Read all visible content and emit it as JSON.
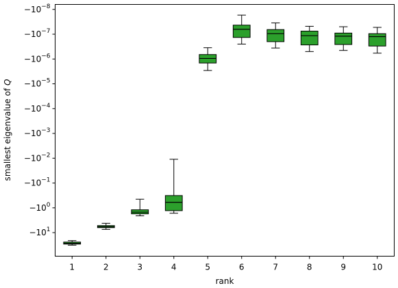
{
  "chart_data": {
    "type": "box",
    "xlabel": "rank",
    "ylabel": "smallest eigenvalue of Q",
    "ylabel_symbol": "Q",
    "yscale": "symlog (negative values, magnitude log10)",
    "y_exponent_range": [
      -8.2,
      1.95
    ],
    "box_color": "#2ca02c",
    "categories": [
      "1",
      "2",
      "3",
      "4",
      "5",
      "6",
      "7",
      "8",
      "9",
      "10"
    ],
    "y_ticks": [
      {
        "base": "−10",
        "exp": "−8",
        "value": -1e-08
      },
      {
        "base": "−10",
        "exp": "−7",
        "value": -1e-07
      },
      {
        "base": "−10",
        "exp": "−6",
        "value": -1e-06
      },
      {
        "base": "−10",
        "exp": "−5",
        "value": -1e-05
      },
      {
        "base": "−10",
        "exp": "−4",
        "value": -0.0001
      },
      {
        "base": "−10",
        "exp": "−3",
        "value": -0.001
      },
      {
        "base": "−10",
        "exp": "−2",
        "value": -0.01
      },
      {
        "base": "−10",
        "exp": "−1",
        "value": -0.1
      },
      {
        "base": "−10",
        "exp": "0",
        "value": -1
      },
      {
        "base": "−10",
        "exp": "1",
        "value": -10
      }
    ],
    "boxes": [
      {
        "rank": "1",
        "whisker_low": -32,
        "q1": -29,
        "median": -27,
        "q3": -24,
        "whisker_high": -21
      },
      {
        "rank": "2",
        "whisker_low": -7.4,
        "q1": -6.3,
        "median": -5.8,
        "q3": -5.2,
        "whisker_high": -4.2
      },
      {
        "rank": "3",
        "whisker_low": -2.1,
        "q1": -1.75,
        "median": -1.5,
        "q3": -1.2,
        "whisker_high": -0.45
      },
      {
        "rank": "4",
        "whisker_low": -1.65,
        "q1": -1.3,
        "median": -0.6,
        "q3": -0.32,
        "whisker_high": -0.011
      },
      {
        "rank": "5",
        "whisker_low": -2.9e-06,
        "q1": -1.45e-06,
        "median": -9.5e-07,
        "q3": -6.6e-07,
        "whisker_high": -3.5e-07
      },
      {
        "rank": "6",
        "whisker_low": -2.5e-07,
        "q1": -1.35e-07,
        "median": -6.3e-08,
        "q3": -4.3e-08,
        "whisker_high": -1.7e-08
      },
      {
        "rank": "7",
        "whisker_low": -3.6e-07,
        "q1": -2e-07,
        "median": -9.5e-08,
        "q3": -6.5e-08,
        "whisker_high": -3.5e-08
      },
      {
        "rank": "8",
        "whisker_low": -5e-07,
        "q1": -2.7e-07,
        "median": -1.15e-07,
        "q3": -7.5e-08,
        "whisker_high": -4.8e-08
      },
      {
        "rank": "9",
        "whisker_low": -4.5e-07,
        "q1": -2.6e-07,
        "median": -1.2e-07,
        "q3": -9e-08,
        "whisker_high": -5e-08
      },
      {
        "rank": "10",
        "whisker_low": -5.8e-07,
        "q1": -3e-07,
        "median": -1.25e-07,
        "q3": -9.5e-08,
        "whisker_high": -5.3e-08
      }
    ]
  }
}
